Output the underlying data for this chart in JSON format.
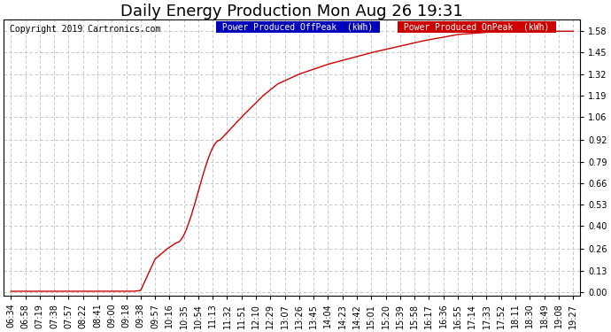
{
  "title": "Daily Energy Production Mon Aug 26 19:31",
  "copyright": "Copyright 2019 Cartronics.com",
  "legend_offpeak_label": "Power Produced OffPeak  (kWh)",
  "legend_onpeak_label": "Power Produced OnPeak  (kWh)",
  "legend_offpeak_color": "#0000bb",
  "legend_onpeak_color": "#cc0000",
  "line_color": "#cc0000",
  "background_color": "#ffffff",
  "plot_bg_color": "#ffffff",
  "grid_color": "#bbbbbb",
  "yticks": [
    0.0,
    0.13,
    0.26,
    0.4,
    0.53,
    0.66,
    0.79,
    0.92,
    1.06,
    1.19,
    1.32,
    1.45,
    1.58
  ],
  "ylim": [
    -0.02,
    1.65
  ],
  "xtick_labels": [
    "06:34",
    "06:58",
    "07:19",
    "07:38",
    "07:57",
    "08:22",
    "08:41",
    "09:00",
    "09:18",
    "09:38",
    "09:57",
    "10:16",
    "10:35",
    "10:54",
    "11:13",
    "11:32",
    "11:51",
    "12:10",
    "12:29",
    "13:07",
    "13:26",
    "13:45",
    "14:04",
    "14:23",
    "14:42",
    "15:01",
    "15:20",
    "15:39",
    "15:58",
    "16:17",
    "16:36",
    "16:55",
    "17:14",
    "17:33",
    "17:52",
    "18:11",
    "18:30",
    "18:49",
    "19:08",
    "19:27"
  ],
  "title_fontsize": 13,
  "tick_fontsize": 7,
  "copyright_fontsize": 7,
  "legend_fontsize": 7
}
